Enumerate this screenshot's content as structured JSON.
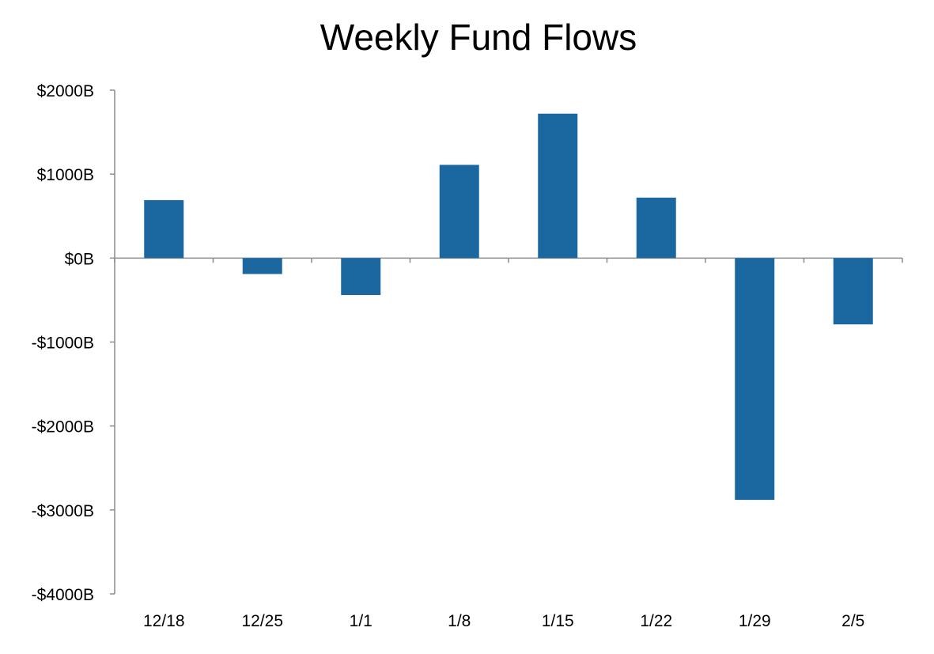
{
  "chart_data": {
    "type": "bar",
    "title": "Weekly Fund Flows",
    "xlabel": "",
    "ylabel": "",
    "categories": [
      "12/18",
      "12/25",
      "1/1",
      "1/8",
      "1/15",
      "1/22",
      "1/29",
      "2/5"
    ],
    "values": [
      690,
      -190,
      -440,
      1110,
      1720,
      720,
      -2880,
      -790
    ],
    "ylim": [
      -4000,
      2000
    ],
    "yticks": [
      2000,
      1000,
      0,
      -1000,
      -2000,
      -3000,
      -4000
    ],
    "ytick_labels": [
      "$2000B",
      "$1000B",
      "$0B",
      "-$1000B",
      "-$2000B",
      "-$3000B",
      "-$4000B"
    ],
    "grid": false,
    "legend": "none",
    "colors": {
      "bar": "#1B68A0",
      "axis": "#8C8C8C",
      "text": "#000000"
    }
  }
}
